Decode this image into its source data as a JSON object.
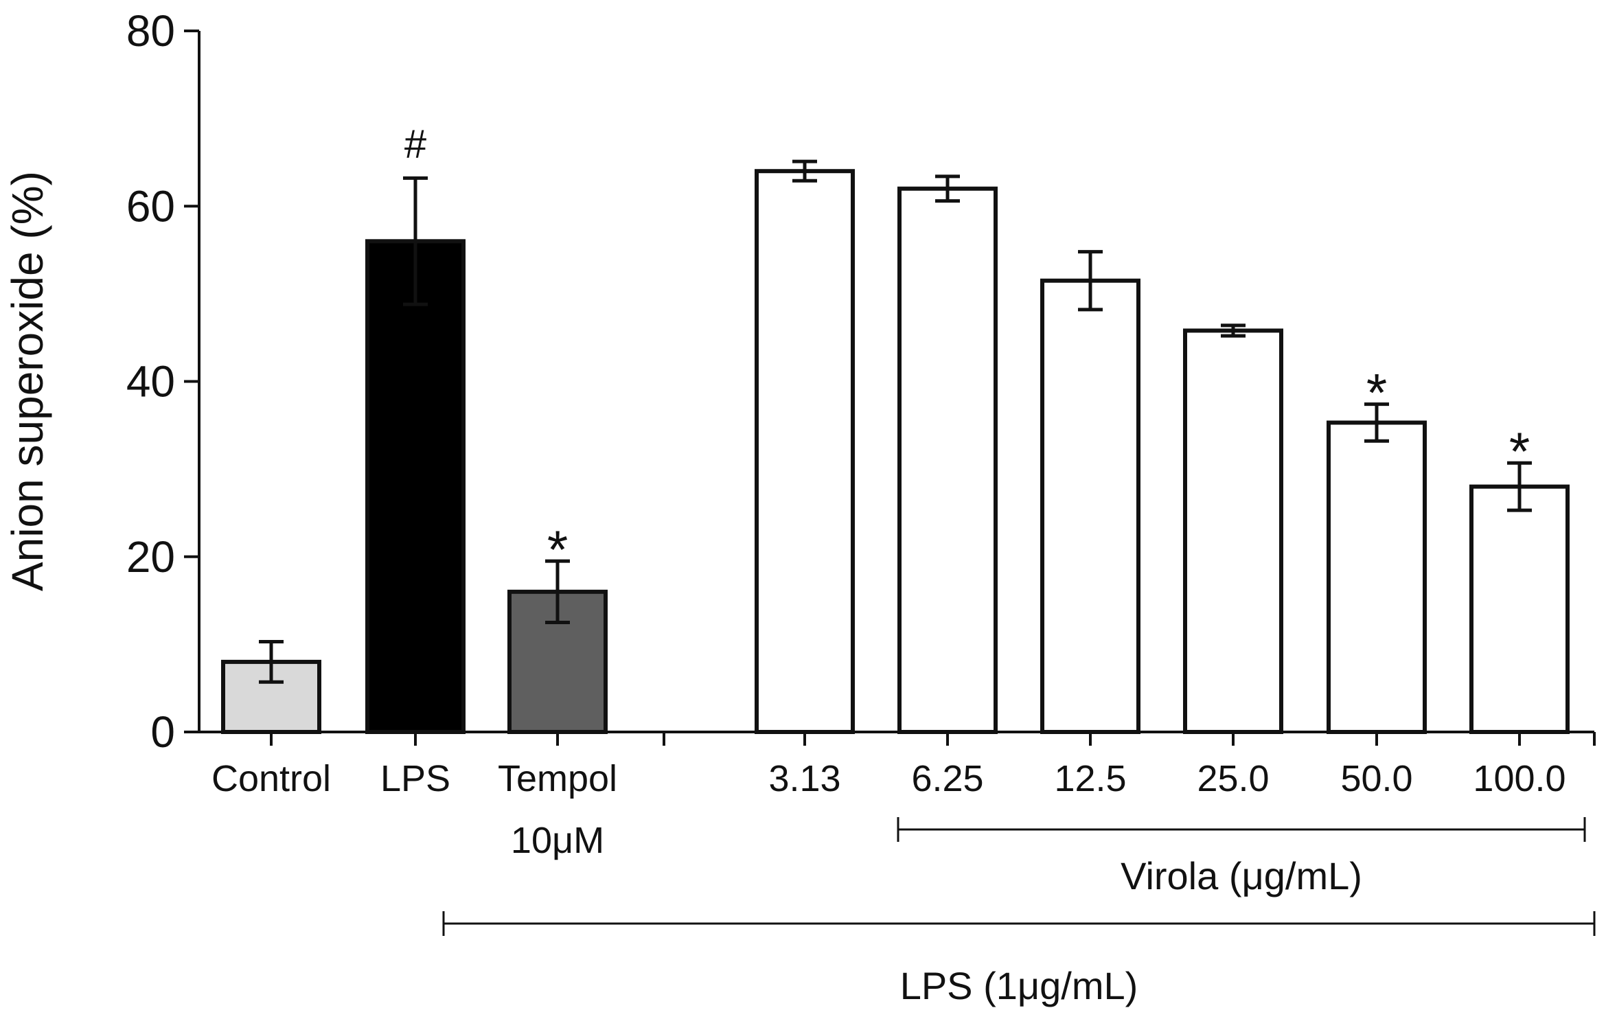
{
  "chart_data": {
    "type": "bar",
    "title": "",
    "xlabel": "",
    "ylabel": "Anion superoxide (%)",
    "ylim": [
      0,
      80
    ],
    "yticks": [
      "0",
      "20",
      "40",
      "60",
      "80"
    ],
    "categories": [
      "Control",
      "LPS",
      "Tempol",
      "3.13",
      "6.25",
      "12.5",
      "25.0",
      "50.0",
      "100.0"
    ],
    "sublabels": {
      "Tempol": "10μM"
    },
    "values": [
      8,
      56,
      16,
      64,
      62,
      51.5,
      45.8,
      35.3,
      28
    ],
    "errors": [
      2.3,
      7.2,
      3.5,
      1.1,
      1.4,
      3.3,
      0.6,
      2.1,
      2.7
    ],
    "colors": [
      "#d9d9d9",
      "#000000",
      "#5f5f5f",
      "#ffffff",
      "#ffffff",
      "#ffffff",
      "#ffffff",
      "#ffffff",
      "#ffffff"
    ],
    "annotations": [
      "",
      "#",
      "*",
      "",
      "",
      "",
      "",
      "*",
      "*"
    ],
    "brackets": [
      {
        "label": "Virola (μg/mL)"
      },
      {
        "label": "LPS (1μg/mL)"
      }
    ]
  }
}
